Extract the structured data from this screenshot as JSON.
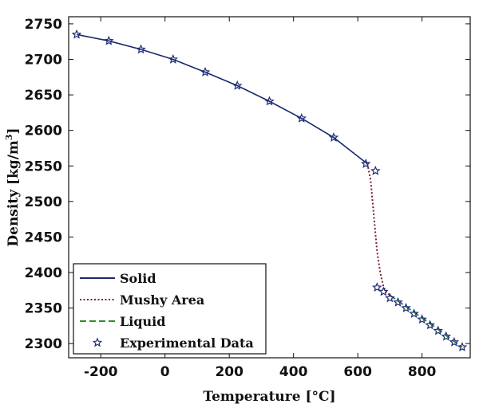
{
  "chart_data": {
    "type": "line",
    "title": "",
    "xlabel": "Temperature [°C]",
    "ylabel_main": "Density [kg/m",
    "ylabel_sup": "3",
    "ylabel_close": "]",
    "xlim": [
      -300,
      950
    ],
    "ylim": [
      2280,
      2760
    ],
    "xticks": [
      -200,
      0,
      200,
      400,
      600,
      800
    ],
    "xtick_labels": [
      "-200",
      "0",
      "200",
      "400",
      "600",
      "800"
    ],
    "yticks": [
      2300,
      2350,
      2400,
      2450,
      2500,
      2550,
      2600,
      2650,
      2700,
      2750
    ],
    "ytick_labels": [
      "2300",
      "2350",
      "2400",
      "2450",
      "2500",
      "2550",
      "2600",
      "2650",
      "2700",
      "2750"
    ],
    "grid": false,
    "legend_position": "bottom-left",
    "series": [
      {
        "name": "Solid",
        "style": "solid",
        "color": "#1a2a6c",
        "x": [
          -275,
          -175,
          -75,
          25,
          125,
          225,
          325,
          425,
          525,
          630
        ],
        "y": [
          2735,
          2726,
          2714,
          2700,
          2682,
          2663,
          2641,
          2617,
          2590,
          2553
        ]
      },
      {
        "name": "Mushy Area",
        "style": "dotted",
        "color": "#7a1f2a",
        "x": [
          630,
          640,
          650,
          660,
          670,
          680,
          690,
          700
        ],
        "y": [
          2553,
          2530,
          2480,
          2430,
          2400,
          2380,
          2372,
          2368
        ]
      },
      {
        "name": "Liquid",
        "style": "dashed",
        "color": "#2f8f2f",
        "x": [
          700,
          750,
          800,
          850,
          900,
          925
        ],
        "y": [
          2368,
          2352,
          2336,
          2320,
          2303,
          2295
        ]
      },
      {
        "name": "Experimental Data",
        "style": "marker",
        "color": "#1f2c7a",
        "x": [
          -275,
          -175,
          -75,
          25,
          125,
          225,
          325,
          425,
          525,
          625,
          655,
          660,
          680,
          700,
          725,
          750,
          775,
          800,
          825,
          850,
          875,
          900,
          925
        ],
        "y": [
          2735,
          2726,
          2714,
          2700,
          2682,
          2663,
          2641,
          2617,
          2590,
          2553,
          2543,
          2379,
          2373,
          2364,
          2358,
          2350,
          2342,
          2334,
          2326,
          2318,
          2310,
          2302,
          2295
        ]
      }
    ]
  }
}
